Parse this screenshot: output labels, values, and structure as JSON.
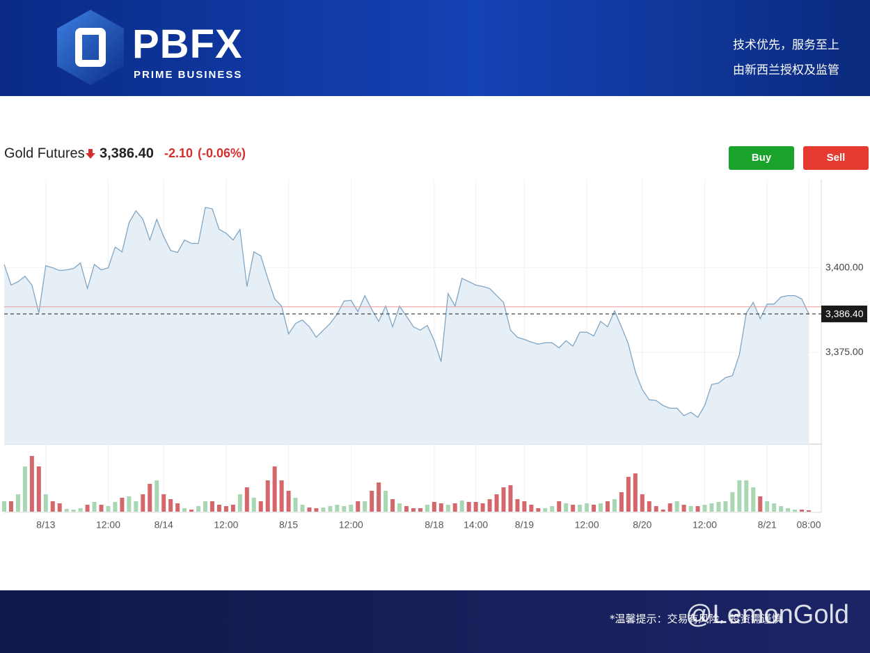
{
  "header": {
    "logo": "PBFX",
    "logo_sub": "PRIME BUSINESS",
    "slogan": "技术优先，服务至上",
    "regulation": "由新西兰授权及监管"
  },
  "chart_data": {
    "type": "line",
    "title": "Gold Futures",
    "price": {
      "value": 3386.4,
      "label": "3,386.40"
    },
    "change": {
      "value": -2.1,
      "label": "-2.10"
    },
    "change_pct": {
      "value": -0.06,
      "label": "(-0.06%)"
    },
    "buttons": [
      "Buy",
      "Sell"
    ],
    "categories": [
      null,
      null,
      null,
      null,
      null,
      null,
      "8/13",
      null,
      null,
      null,
      null,
      null,
      null,
      null,
      null,
      "12:00",
      null,
      null,
      null,
      null,
      null,
      null,
      null,
      "8/14",
      null,
      null,
      null,
      null,
      null,
      null,
      null,
      null,
      "12:00",
      null,
      null,
      null,
      null,
      null,
      null,
      null,
      null,
      "8/15",
      null,
      null,
      null,
      null,
      null,
      null,
      null,
      null,
      "12:00",
      null,
      null,
      null,
      null,
      null,
      null,
      null,
      null,
      null,
      null,
      null,
      "8/18",
      null,
      null,
      null,
      null,
      null,
      "14:00",
      null,
      null,
      null,
      null,
      null,
      null,
      "8/19",
      null,
      null,
      null,
      null,
      null,
      null,
      null,
      null,
      "12:00",
      null,
      null,
      null,
      null,
      null,
      null,
      null,
      "8/20",
      null,
      null,
      null,
      null,
      null,
      null,
      null,
      null,
      "12:00",
      null,
      null,
      null,
      null,
      null,
      null,
      null,
      null,
      "8/21",
      null,
      null,
      null,
      null,
      null,
      "08:00"
    ],
    "values": [
      3401,
      3394.9,
      3395.9,
      3397.5,
      3394.9,
      3386.7,
      3400.6,
      3400,
      3399.2,
      3399.4,
      3399.8,
      3401.4,
      3393.9,
      3401,
      3399.4,
      3400,
      3406.1,
      3404.7,
      3413.3,
      3416.8,
      3414.3,
      3408.2,
      3414.3,
      3409.2,
      3405.1,
      3404.5,
      3408.2,
      3407.2,
      3407.2,
      3417.8,
      3417.4,
      3411.3,
      3410.2,
      3408.2,
      3411.3,
      3394.5,
      3404.7,
      3403.5,
      3396.9,
      3390.8,
      3388.7,
      3380.5,
      3383.6,
      3384.6,
      3382.6,
      3379.5,
      3381.6,
      3383.6,
      3386.3,
      3390.2,
      3390.4,
      3387.1,
      3391.8,
      3387.7,
      3384.2,
      3388.7,
      3382.6,
      3388.7,
      3385.7,
      3382.6,
      3381.6,
      3383,
      3378.5,
      3372.3,
      3392.4,
      3388.7,
      3396.9,
      3395.9,
      3394.9,
      3394.5,
      3393.9,
      3391.8,
      3389.8,
      3381.6,
      3379.5,
      3378.9,
      3378.1,
      3377.5,
      3377.9,
      3377.9,
      3376.4,
      3378.5,
      3376.9,
      3381,
      3381,
      3379.9,
      3384.2,
      3382.6,
      3387.3,
      3382.6,
      3377.5,
      3369.3,
      3364.1,
      3361.1,
      3360.9,
      3359.4,
      3358.6,
      3358.6,
      3356.4,
      3357.4,
      3355.9,
      3359.4,
      3365.6,
      3366,
      3367.6,
      3368.2,
      3374.4,
      3386.7,
      3389.8,
      3385,
      3389.3,
      3389.3,
      3391.4,
      3391.8,
      3391.8,
      3390.8,
      3386.4
    ],
    "color": "#7fa6c6",
    "area_color": "#e6eef6",
    "prev_close": 3388.5,
    "prev_close_color": "#e79a9a",
    "volume": [
      15,
      15,
      25,
      65,
      80,
      65,
      25,
      15,
      12,
      4,
      3,
      5,
      10,
      14,
      10,
      8,
      14,
      20,
      22,
      15,
      25,
      40,
      45,
      25,
      18,
      12,
      5,
      3,
      8,
      15,
      15,
      10,
      8,
      10,
      25,
      35,
      20,
      15,
      45,
      65,
      45,
      30,
      20,
      10,
      6,
      5,
      6,
      8,
      10,
      8,
      10,
      15,
      15,
      30,
      42,
      30,
      18,
      12,
      8,
      5,
      5,
      10,
      14,
      12,
      10,
      12,
      16,
      14,
      14,
      12,
      18,
      25,
      35,
      38,
      18,
      15,
      10,
      5,
      5,
      8,
      15,
      12,
      10,
      10,
      12,
      10,
      12,
      15,
      18,
      28,
      50,
      55,
      25,
      15,
      8,
      3,
      12,
      15,
      10,
      8,
      8,
      10,
      12,
      14,
      15,
      28,
      45,
      45,
      35,
      22,
      15,
      12,
      8,
      5,
      3,
      3,
      2
    ],
    "volume_up_color": "#a9d6b3",
    "volume_down_color": "#d4676b",
    "ylim": [
      3348,
      3426
    ],
    "yticks": [
      {
        "value": 3400,
        "label": "3,400.00"
      },
      {
        "value": 3375,
        "label": "3,375.00"
      }
    ]
  },
  "footer": {
    "notice": "*温馨提示：交易有风险，投资需谨慎",
    "watermark": "@LemonGold"
  }
}
